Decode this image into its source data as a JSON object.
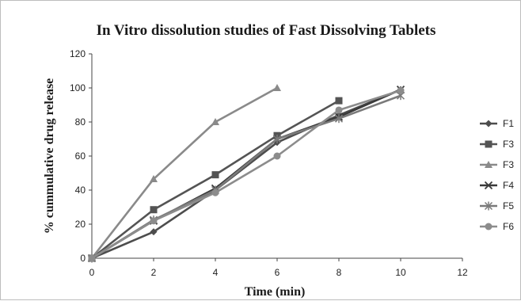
{
  "chart_data": {
    "type": "line",
    "title": "In Vitro dissolution studies of  Fast Dissolving Tablets",
    "xlabel": "Time (min)",
    "ylabel": "% cummulative drug release",
    "xlim": [
      0,
      12
    ],
    "ylim": [
      0,
      120
    ],
    "x_ticks": [
      0,
      2,
      4,
      6,
      8,
      10,
      12
    ],
    "y_ticks": [
      0,
      20,
      40,
      60,
      80,
      100,
      120
    ],
    "grid": false,
    "legend_position": "right",
    "series": [
      {
        "name": "F1",
        "marker": "diamond",
        "color": "#4d4d4d",
        "x": [
          0,
          2,
          4,
          6,
          8,
          10
        ],
        "y": [
          0,
          15.5,
          40,
          68,
          84,
          99
        ]
      },
      {
        "name": "F3",
        "marker": "square",
        "color": "#545454",
        "x": [
          0,
          2,
          4,
          6,
          8,
          10
        ],
        "y": [
          0,
          28.5,
          49,
          72,
          92.5,
          null
        ]
      },
      {
        "name": "F3",
        "marker": "triangle",
        "color": "#8a8a8a",
        "x": [
          0,
          2,
          4,
          6
        ],
        "y": [
          0,
          46.5,
          80,
          100
        ]
      },
      {
        "name": "F4",
        "marker": "x",
        "color": "#3a3a3a",
        "x": [
          0,
          2,
          4,
          6,
          8,
          10
        ],
        "y": [
          0,
          22,
          41,
          70,
          83,
          99
        ]
      },
      {
        "name": "F5",
        "marker": "star",
        "color": "#7a7a7a",
        "x": [
          0,
          2,
          4,
          6,
          8,
          10
        ],
        "y": [
          0,
          22.5,
          40,
          70,
          82,
          95.5
        ]
      },
      {
        "name": "F6",
        "marker": "circle",
        "color": "#8c8c8c",
        "x": [
          0,
          2,
          4,
          6,
          8,
          10
        ],
        "y": [
          0,
          22,
          38.5,
          60,
          87,
          98.5
        ]
      }
    ]
  }
}
